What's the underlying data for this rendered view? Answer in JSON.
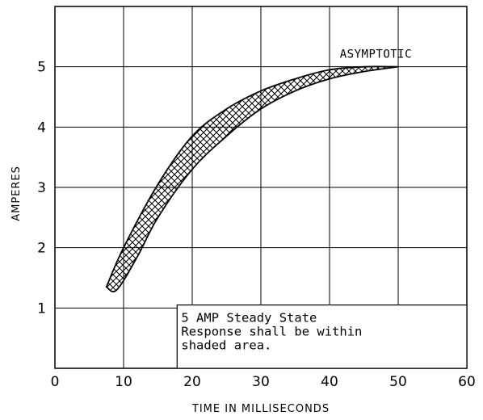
{
  "chart_data": {
    "type": "area",
    "xlabel": "TIME IN MILLISECONDS",
    "ylabel": "AMPERES",
    "xlim": [
      0,
      60
    ],
    "ylim": [
      0,
      6
    ],
    "x_ticks": [
      "0",
      "10",
      "20",
      "30",
      "40",
      "50",
      "60"
    ],
    "y_ticks": [
      "1",
      "2",
      "3",
      "4",
      "5"
    ],
    "grid": true,
    "series": [
      {
        "values": [
          {
            "x": 7.5,
            "y": 1.35
          },
          {
            "x": 10,
            "y": 2.0
          },
          {
            "x": 15,
            "y": 3.05
          },
          {
            "x": 20,
            "y": 3.85
          },
          {
            "x": 25,
            "y": 4.3
          },
          {
            "x": 30,
            "y": 4.6
          },
          {
            "x": 35,
            "y": 4.8
          },
          {
            "x": 40,
            "y": 4.95
          },
          {
            "x": 45,
            "y": 5.0
          },
          {
            "x": 50,
            "y": 5.0
          }
        ]
      },
      {
        "values": [
          {
            "x": 7.5,
            "y": 1.35
          },
          {
            "x": 9,
            "y": 1.3
          },
          {
            "x": 12,
            "y": 1.85
          },
          {
            "x": 15,
            "y": 2.5
          },
          {
            "x": 20,
            "y": 3.3
          },
          {
            "x": 25,
            "y": 3.85
          },
          {
            "x": 30,
            "y": 4.3
          },
          {
            "x": 35,
            "y": 4.6
          },
          {
            "x": 40,
            "y": 4.8
          },
          {
            "x": 45,
            "y": 4.92
          },
          {
            "x": 50,
            "y": 5.0
          }
        ]
      }
    ],
    "annotations": [
      {
        "text": "ASYMPTOTIC",
        "x": 41.5,
        "y": 5.2
      },
      {
        "text": [
          "5 AMP Steady State",
          "Response shall be within",
          "shaded area."
        ]
      }
    ]
  }
}
